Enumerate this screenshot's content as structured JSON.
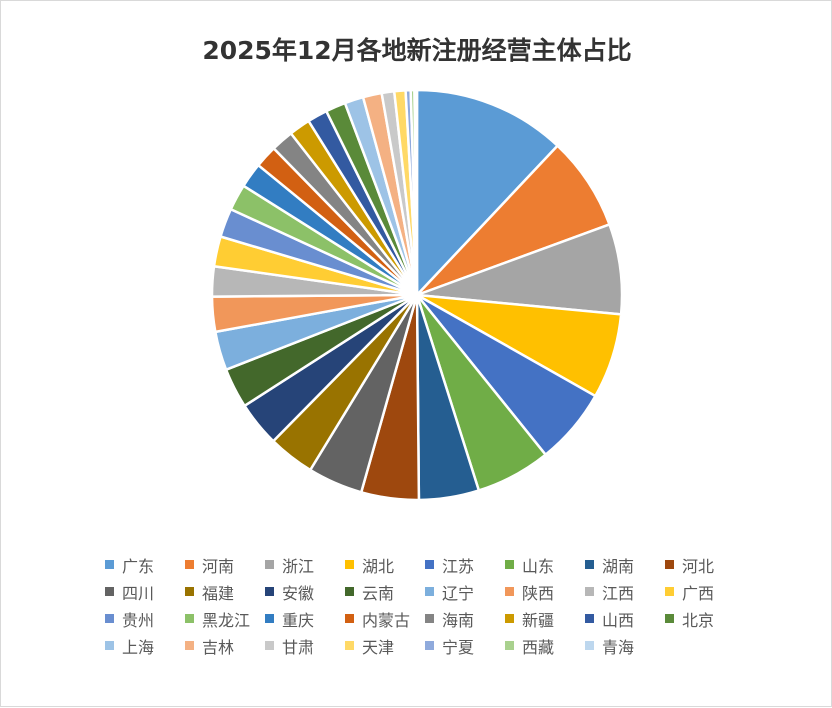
{
  "chart_data": {
    "type": "pie",
    "title": "2025年12月各地新注册经营主体占比",
    "legend_position": "bottom",
    "categories": [
      "广东",
      "河南",
      "浙江",
      "湖北",
      "江苏",
      "山东",
      "湖南",
      "河北",
      "四川",
      "福建",
      "安徽",
      "云南",
      "辽宁",
      "陕西",
      "江西",
      "广西",
      "贵州",
      "黑龙江",
      "重庆",
      "内蒙古",
      "海南",
      "新疆",
      "山西",
      "北京",
      "上海",
      "吉林",
      "甘肃",
      "天津",
      "宁夏",
      "西藏",
      "青海"
    ],
    "values": [
      12.2,
      7.5,
      7.2,
      6.8,
      6.1,
      6.0,
      4.8,
      4.6,
      4.4,
      3.7,
      3.6,
      3.2,
      3.1,
      2.8,
      2.4,
      2.4,
      2.3,
      2.1,
      2.0,
      1.8,
      1.8,
      1.7,
      1.6,
      1.6,
      1.5,
      1.5,
      1.0,
      0.9,
      0.4,
      0.3,
      0.2
    ],
    "colors": [
      "#5b9bd5",
      "#ed7d31",
      "#a5a5a5",
      "#ffc000",
      "#4472c4",
      "#70ad47",
      "#255e91",
      "#9e480e",
      "#636363",
      "#997300",
      "#264478",
      "#43682b",
      "#7cafdd",
      "#f1975a",
      "#b7b7b7",
      "#ffcd33",
      "#698ed0",
      "#8cc168",
      "#327dc2",
      "#d26012",
      "#848484",
      "#cc9a00",
      "#335aa1",
      "#5a8a39",
      "#9dc3e6",
      "#f4b183",
      "#c9c9c9",
      "#ffd966",
      "#8faadc",
      "#a9d18e",
      "#bdd7ee"
    ]
  }
}
